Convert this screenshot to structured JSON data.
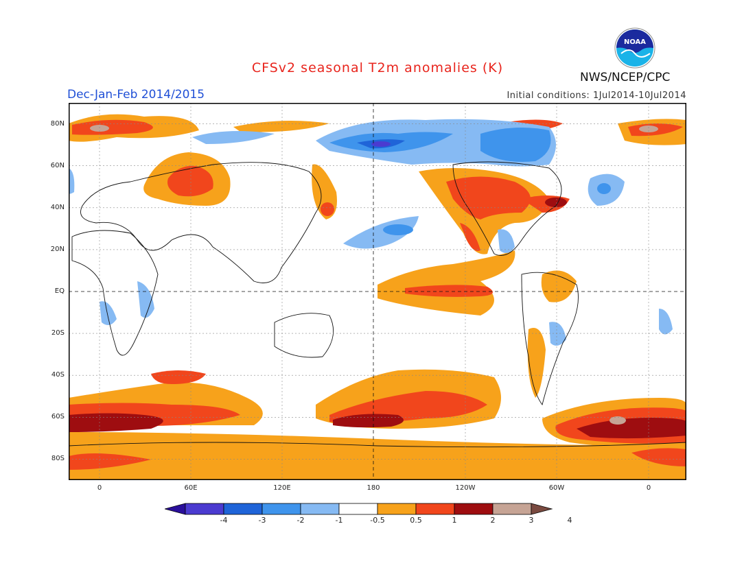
{
  "title": "CFSv2 seasonal T2m anomalies (K)",
  "season": "Dec-Jan-Feb 2014/2015",
  "initial_conditions": "Initial conditions: 1Jul2014-10Jul2014",
  "organization": "NWS/NCEP/CPC",
  "logo_text": "NOAA",
  "lat_labels": [
    "80N",
    "60N",
    "40N",
    "20N",
    "EQ",
    "20S",
    "40S",
    "60S",
    "80S"
  ],
  "lon_labels": [
    "0",
    "60E",
    "120E",
    "180",
    "120W",
    "60W",
    "0"
  ],
  "colorbar": {
    "labels": [
      "-4",
      "-3",
      "-2",
      "-1",
      "-0.5",
      "0.5",
      "1",
      "2",
      "3",
      "4"
    ],
    "colors": [
      "#2a0f9b",
      "#4b3bd0",
      "#1f64d8",
      "#3f94ec",
      "#86baf3",
      "#ffffff",
      "#f7a21b",
      "#f1461c",
      "#9e0d10",
      "#c6a495",
      "#7a4a40"
    ]
  },
  "colors": {
    "title": "#e8241c",
    "season": "#1f4fd6",
    "warm1": "#f7a21b",
    "warm2": "#f1461c",
    "warm3": "#9e0d10",
    "warm4": "#c6a495",
    "cool1": "#86baf3",
    "cool2": "#3f94ec",
    "cool3": "#1f64d8",
    "cool4": "#4b3bd0"
  }
}
